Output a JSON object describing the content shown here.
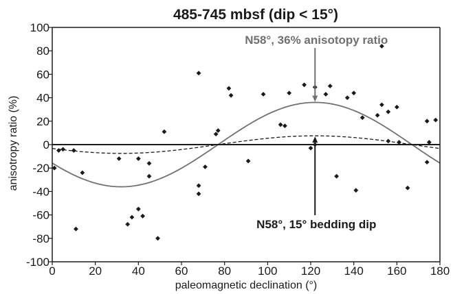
{
  "chart_data": {
    "type": "scatter",
    "title": "485-745 mbsf (dip < 15°)",
    "xlabel": "paleomagnetic declination (°)",
    "ylabel": "anisotropy ratio (%)",
    "xlim": [
      0,
      180
    ],
    "ylim": [
      -100,
      100
    ],
    "x_ticks": [
      0,
      20,
      40,
      60,
      80,
      100,
      120,
      140,
      160,
      180
    ],
    "y_ticks": [
      -100,
      -80,
      -60,
      -40,
      -20,
      0,
      20,
      40,
      60,
      80,
      100
    ],
    "grid": false,
    "points": [
      {
        "x": 1,
        "y": -20
      },
      {
        "x": 3,
        "y": -5
      },
      {
        "x": 5,
        "y": -4
      },
      {
        "x": 10,
        "y": -5
      },
      {
        "x": 11,
        "y": -72
      },
      {
        "x": 14,
        "y": -24
      },
      {
        "x": 31,
        "y": -12
      },
      {
        "x": 35,
        "y": -68
      },
      {
        "x": 37,
        "y": -62
      },
      {
        "x": 40,
        "y": -55
      },
      {
        "x": 40,
        "y": -12
      },
      {
        "x": 42,
        "y": -61
      },
      {
        "x": 45,
        "y": -16
      },
      {
        "x": 45,
        "y": -27
      },
      {
        "x": 49,
        "y": -80
      },
      {
        "x": 52,
        "y": 11
      },
      {
        "x": 68,
        "y": 61
      },
      {
        "x": 68,
        "y": -35
      },
      {
        "x": 68,
        "y": -42
      },
      {
        "x": 71,
        "y": -19
      },
      {
        "x": 76,
        "y": 9
      },
      {
        "x": 77,
        "y": 12
      },
      {
        "x": 82,
        "y": 48
      },
      {
        "x": 83,
        "y": 42
      },
      {
        "x": 91,
        "y": -14
      },
      {
        "x": 98,
        "y": 43
      },
      {
        "x": 106,
        "y": 17
      },
      {
        "x": 108,
        "y": 16
      },
      {
        "x": 110,
        "y": 44
      },
      {
        "x": 117,
        "y": 51
      },
      {
        "x": 120,
        "y": -3
      },
      {
        "x": 122,
        "y": 0
      },
      {
        "x": 122,
        "y": 49
      },
      {
        "x": 127,
        "y": 43
      },
      {
        "x": 129,
        "y": 50
      },
      {
        "x": 132,
        "y": -27
      },
      {
        "x": 137,
        "y": 40
      },
      {
        "x": 140,
        "y": 44
      },
      {
        "x": 141,
        "y": -39
      },
      {
        "x": 144,
        "y": 23
      },
      {
        "x": 151,
        "y": 25
      },
      {
        "x": 153,
        "y": 84
      },
      {
        "x": 153,
        "y": 34
      },
      {
        "x": 156,
        "y": 3
      },
      {
        "x": 156,
        "y": 28
      },
      {
        "x": 160,
        "y": 32
      },
      {
        "x": 161,
        "y": 2
      },
      {
        "x": 165,
        "y": -37
      },
      {
        "x": 174,
        "y": 20
      },
      {
        "x": 174,
        "y": -15
      },
      {
        "x": 175,
        "y": 2
      },
      {
        "x": 178,
        "y": 21
      }
    ],
    "curves": [
      {
        "style": "solid",
        "color": "#707070",
        "amplitude": 36,
        "peak_x": 122
      },
      {
        "style": "dashed",
        "color": "#1a1a1a",
        "amplitude": 7.5,
        "peak_x": 122
      }
    ],
    "annotations": [
      {
        "text": "N58°, 36% anisotopy ratio",
        "x": 122,
        "y": 36,
        "arrow": "down",
        "color": "#707070"
      },
      {
        "text": "N58°, 15° bedding dip",
        "x": 122,
        "y": 7.5,
        "arrow": "up",
        "color": "#1a1a1a"
      }
    ],
    "colors": {
      "points": "#1a1a1a",
      "axes": "#1a1a1a",
      "zero_line": "#1a1a1a"
    }
  }
}
